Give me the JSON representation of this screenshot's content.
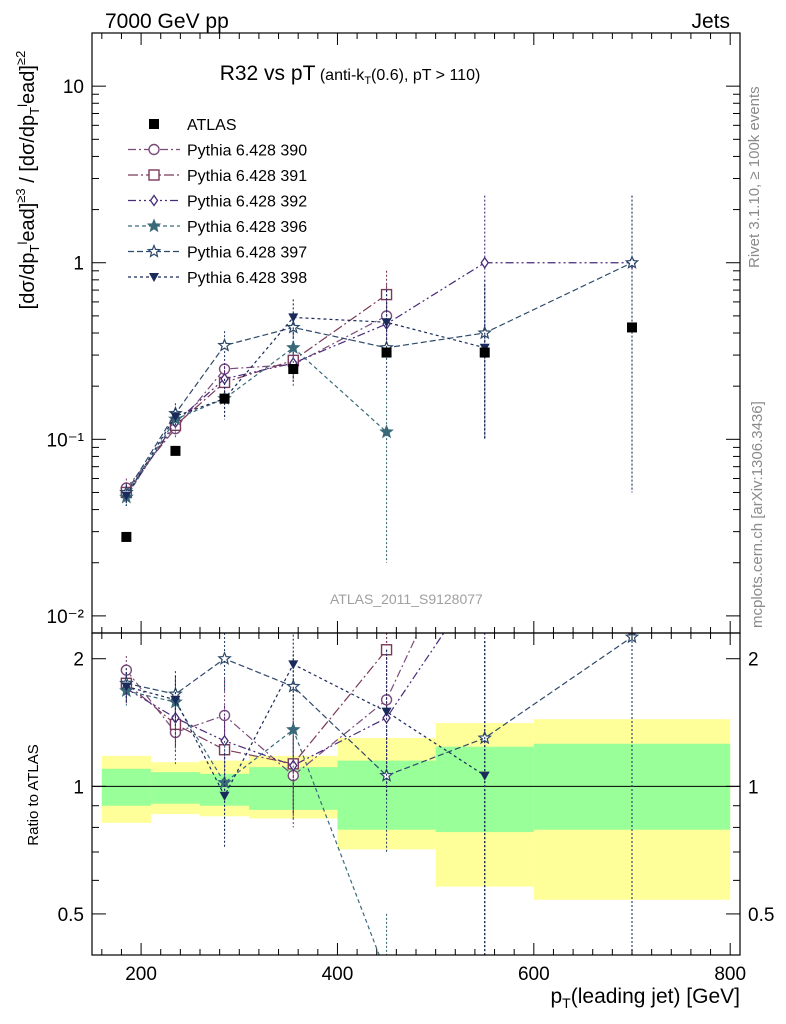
{
  "header": {
    "energy_label": "7000 GeV pp",
    "category_label": "Jets"
  },
  "plot_title": {
    "main": "R32 vs pT",
    "sub_prefix": " (anti-k",
    "sub_sub": "T",
    "sub_suffix": "(0.6), pT > 110)"
  },
  "side_labels": {
    "rivet": "Rivet 3.1.10, ≥ 100k events",
    "mcplots": "mcplots.cern.ch [arXiv:1306.3436]"
  },
  "analysis_label": "ATLAS_2011_S9128077",
  "colors": {
    "band_outer": "#ffff99",
    "band_inner": "#99ff99",
    "series": [
      "#7a4c7a",
      "#7a3a5a",
      "#4a2a7a",
      "#3a6a7a",
      "#2e4a6a",
      "#1a2a5a"
    ]
  },
  "chart_data": {
    "type": "scatter",
    "title": "R32 vs pT",
    "xlabel": "p_T(leading jet) [GeV]",
    "ylabel": "[dσ/dp_T^lead]^{≥3} / [dσ/dp_T^lead]^{≥2}",
    "ratio_ylabel": "Ratio to ATLAS",
    "xlim": [
      150,
      810
    ],
    "ylim": [
      0.008,
      20
    ],
    "yscale": "log",
    "ratio_ylim": [
      0.4,
      2.3
    ],
    "ratio_yscale": "log",
    "x_ticks": [
      "200",
      "400",
      "600",
      "800"
    ],
    "y_ticks": [
      "10⁻²",
      "10⁻¹",
      "1",
      "10"
    ],
    "ratio_ticks": [
      "0.5",
      "1",
      "2"
    ],
    "bins": [
      160,
      210,
      260,
      310,
      400,
      500,
      600,
      800
    ],
    "x": [
      185,
      235,
      285,
      355,
      450,
      550,
      700
    ],
    "data": {
      "name": "ATLAS",
      "values": [
        0.028,
        0.086,
        0.17,
        0.25,
        0.31,
        0.31,
        0.43
      ],
      "band_inner": [
        [
          0.9,
          1.1
        ],
        [
          0.91,
          1.08
        ],
        [
          0.9,
          1.07
        ],
        [
          0.88,
          1.11
        ],
        [
          0.79,
          1.15
        ],
        [
          0.78,
          1.24
        ],
        [
          0.79,
          1.26
        ]
      ],
      "band_outer": [
        [
          0.82,
          1.18
        ],
        [
          0.86,
          1.14
        ],
        [
          0.85,
          1.15
        ],
        [
          0.84,
          1.18
        ],
        [
          0.71,
          1.3
        ],
        [
          0.58,
          1.41
        ],
        [
          0.54,
          1.44
        ]
      ]
    },
    "series": [
      {
        "name": "Pythia 6.428 390",
        "marker": "circle-open",
        "dash": "8,3,2,3",
        "values": [
          0.053,
          0.115,
          0.25,
          0.265,
          0.5,
          null,
          null
        ],
        "err": [
          [
            0.046,
            0.06
          ],
          [
            0.1,
            0.13
          ],
          [
            0.2,
            0.3
          ],
          [
            0.2,
            0.33
          ],
          [
            0.3,
            0.75
          ],
          null,
          null
        ],
        "ratio": [
          1.88,
          1.34,
          1.47,
          1.06,
          1.6,
          5.0,
          null
        ],
        "ratio_err": [
          [
            1.74,
            2.03
          ],
          [
            1.12,
            1.58
          ],
          [
            1.18,
            1.79
          ],
          [
            0.8,
            1.3
          ],
          [
            1.0,
            2.25
          ],
          null,
          null
        ]
      },
      {
        "name": "Pythia 6.428 391",
        "marker": "square-open",
        "dash": "10,3,2,3",
        "values": [
          0.05,
          0.12,
          0.21,
          0.28,
          0.66,
          null,
          null
        ],
        "err": [
          [
            0.044,
            0.057
          ],
          [
            0.105,
            0.135
          ],
          [
            0.17,
            0.26
          ],
          [
            0.22,
            0.34
          ],
          [
            0.42,
            0.9
          ],
          null,
          null
        ],
        "ratio": [
          1.75,
          1.4,
          1.22,
          1.13,
          2.1,
          null,
          null
        ],
        "ratio_err": [
          [
            1.6,
            1.9
          ],
          [
            1.2,
            1.62
          ],
          [
            0.98,
            1.46
          ],
          [
            0.84,
            1.43
          ],
          [
            1.4,
            2.9
          ],
          null,
          null
        ]
      },
      {
        "name": "Pythia 6.428 392",
        "marker": "diamond-open",
        "dash": "8,3,2,3,2,3",
        "values": [
          0.048,
          0.125,
          0.22,
          0.27,
          0.45,
          1.0,
          1.0
        ],
        "err": [
          [
            0.042,
            0.055
          ],
          [
            0.11,
            0.14
          ],
          [
            0.18,
            0.27
          ],
          [
            0.21,
            0.33
          ],
          [
            0.3,
            0.7
          ],
          [
            0.1,
            2.4
          ],
          [
            0.05,
            2.4
          ]
        ],
        "ratio": [
          1.7,
          1.45,
          1.28,
          1.12,
          1.45,
          3.2,
          2.3
        ],
        "ratio_err": [
          [
            1.57,
            1.84
          ],
          [
            1.23,
            1.67
          ],
          [
            1.02,
            1.55
          ],
          [
            0.86,
            1.38
          ],
          [
            0.95,
            2.1
          ],
          [
            0.4,
            2.4
          ],
          [
            0.4,
            2.4
          ]
        ]
      },
      {
        "name": "Pythia 6.428 396",
        "marker": "star-filled",
        "dash": "4,3",
        "values": [
          0.047,
          0.13,
          0.17,
          0.33,
          0.11,
          null,
          null
        ],
        "err": [
          [
            0.041,
            0.053
          ],
          [
            0.115,
            0.145
          ],
          [
            0.13,
            0.22
          ],
          [
            0.26,
            0.4
          ],
          [
            0.02,
            0.2
          ],
          null,
          null
        ],
        "ratio": [
          1.68,
          1.58,
          1.02,
          1.36,
          0.36,
          null,
          null
        ],
        "ratio_err": [
          [
            1.55,
            1.82
          ],
          [
            1.36,
            1.8
          ],
          [
            0.78,
            1.28
          ],
          [
            1.1,
            1.62
          ],
          [
            0.3,
            0.5
          ],
          null,
          null
        ]
      },
      {
        "name": "Pythia 6.428 397",
        "marker": "star-open",
        "dash": "6,3",
        "values": [
          0.05,
          0.14,
          0.34,
          0.43,
          0.33,
          0.4,
          1.0
        ],
        "err": [
          [
            0.044,
            0.056
          ],
          [
            0.125,
            0.16
          ],
          [
            0.28,
            0.41
          ],
          [
            0.35,
            0.52
          ],
          [
            0.2,
            0.6
          ],
          [
            0.1,
            0.8
          ],
          [
            0.05,
            2.4
          ]
        ],
        "ratio": [
          1.75,
          1.65,
          2.0,
          1.72,
          1.06,
          1.3,
          2.25
        ],
        "ratio_err": [
          [
            1.62,
            1.9
          ],
          [
            1.43,
            1.87
          ],
          [
            1.68,
            2.32
          ],
          [
            1.4,
            2.05
          ],
          [
            0.7,
            1.42
          ],
          [
            0.4,
            2.2
          ],
          [
            0.4,
            2.3
          ]
        ]
      },
      {
        "name": "Pythia 6.428 398",
        "marker": "triangle-down-filled",
        "dash": "3,3",
        "values": [
          0.048,
          0.135,
          0.17,
          0.49,
          0.46,
          0.33,
          null
        ],
        "err": [
          [
            0.042,
            0.055
          ],
          [
            0.12,
            0.15
          ],
          [
            0.13,
            0.22
          ],
          [
            0.38,
            0.62
          ],
          [
            0.3,
            0.7
          ],
          [
            0.1,
            0.75
          ],
          null
        ],
        "ratio": [
          1.72,
          1.6,
          0.95,
          1.94,
          1.5,
          1.06,
          null
        ],
        "ratio_err": [
          [
            1.58,
            1.86
          ],
          [
            1.38,
            1.82
          ],
          [
            0.72,
            1.2
          ],
          [
            1.6,
            2.28
          ],
          [
            0.95,
            2.1
          ],
          [
            0.4,
            2.2
          ],
          null
        ]
      }
    ],
    "legend_position": "top-left"
  }
}
